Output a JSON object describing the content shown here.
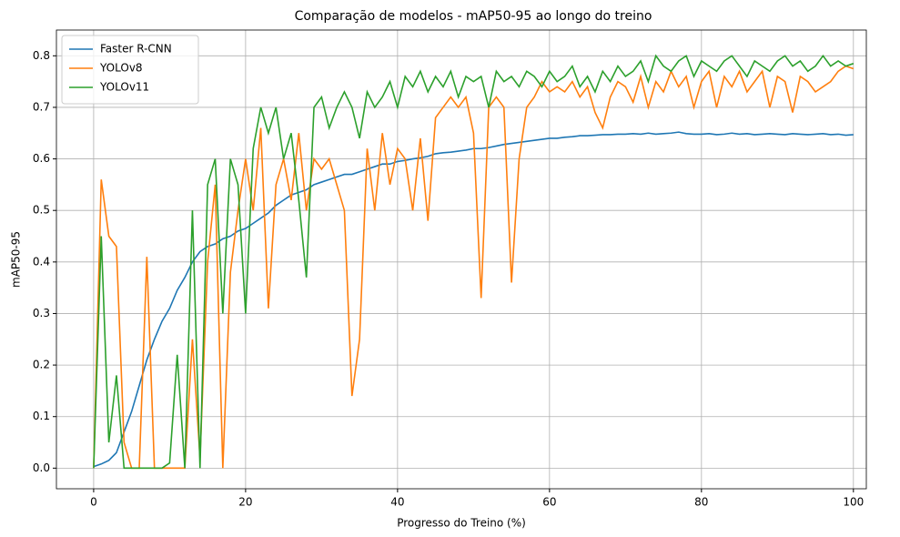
{
  "chart_data": {
    "type": "line",
    "title": "Comparação de modelos - mAP50-95 ao longo do treino",
    "x_label": "Progresso do Treino (%)",
    "y_label": "mAP50-95",
    "x": [
      0,
      1,
      2,
      3,
      4,
      5,
      6,
      7,
      8,
      9,
      10,
      11,
      12,
      13,
      14,
      15,
      16,
      17,
      18,
      19,
      20,
      21,
      22,
      23,
      24,
      25,
      26,
      27,
      28,
      29,
      30,
      31,
      32,
      33,
      34,
      35,
      36,
      37,
      38,
      39,
      40,
      41,
      42,
      43,
      44,
      45,
      46,
      47,
      48,
      49,
      50,
      51,
      52,
      53,
      54,
      55,
      56,
      57,
      58,
      59,
      60,
      61,
      62,
      63,
      64,
      65,
      66,
      67,
      68,
      69,
      70,
      71,
      72,
      73,
      74,
      75,
      76,
      77,
      78,
      79,
      80,
      81,
      82,
      83,
      84,
      85,
      86,
      87,
      88,
      89,
      90,
      91,
      92,
      93,
      94,
      95,
      96,
      97,
      98,
      99,
      100
    ],
    "series": [
      {
        "name": "Faster R-CNN",
        "color": "#1f77b4",
        "values": [
          0.003,
          0.008,
          0.015,
          0.03,
          0.07,
          0.11,
          0.16,
          0.21,
          0.25,
          0.285,
          0.31,
          0.345,
          0.37,
          0.4,
          0.42,
          0.43,
          0.435,
          0.445,
          0.45,
          0.46,
          0.465,
          0.475,
          0.485,
          0.495,
          0.51,
          0.52,
          0.53,
          0.535,
          0.54,
          0.55,
          0.555,
          0.56,
          0.565,
          0.57,
          0.57,
          0.575,
          0.58,
          0.585,
          0.59,
          0.59,
          0.595,
          0.597,
          0.6,
          0.602,
          0.605,
          0.61,
          0.612,
          0.613,
          0.615,
          0.617,
          0.62,
          0.62,
          0.622,
          0.625,
          0.628,
          0.63,
          0.632,
          0.634,
          0.636,
          0.638,
          0.64,
          0.64,
          0.642,
          0.643,
          0.645,
          0.645,
          0.646,
          0.647,
          0.647,
          0.648,
          0.648,
          0.649,
          0.648,
          0.65,
          0.648,
          0.649,
          0.65,
          0.652,
          0.649,
          0.648,
          0.648,
          0.649,
          0.647,
          0.648,
          0.65,
          0.648,
          0.649,
          0.647,
          0.648,
          0.649,
          0.648,
          0.647,
          0.649,
          0.648,
          0.647,
          0.648,
          0.649,
          0.647,
          0.648,
          0.646,
          0.647
        ]
      },
      {
        "name": "YOLOv8",
        "color": "#ff7f0e",
        "values": [
          0.0,
          0.56,
          0.45,
          0.43,
          0.05,
          0.0,
          0.0,
          0.41,
          0.0,
          0.0,
          0.0,
          0.0,
          0.0,
          0.25,
          0.02,
          0.4,
          0.55,
          0.0,
          0.38,
          0.5,
          0.6,
          0.5,
          0.66,
          0.31,
          0.55,
          0.6,
          0.52,
          0.65,
          0.5,
          0.6,
          0.58,
          0.6,
          0.55,
          0.5,
          0.14,
          0.25,
          0.62,
          0.5,
          0.65,
          0.55,
          0.62,
          0.6,
          0.5,
          0.64,
          0.48,
          0.68,
          0.7,
          0.72,
          0.7,
          0.72,
          0.65,
          0.33,
          0.7,
          0.72,
          0.7,
          0.36,
          0.6,
          0.7,
          0.72,
          0.75,
          0.73,
          0.74,
          0.73,
          0.75,
          0.72,
          0.74,
          0.69,
          0.66,
          0.72,
          0.75,
          0.74,
          0.71,
          0.76,
          0.7,
          0.75,
          0.73,
          0.77,
          0.74,
          0.76,
          0.7,
          0.75,
          0.77,
          0.7,
          0.76,
          0.74,
          0.77,
          0.73,
          0.75,
          0.77,
          0.7,
          0.76,
          0.75,
          0.69,
          0.76,
          0.75,
          0.73,
          0.74,
          0.75,
          0.77,
          0.78,
          0.775
        ]
      },
      {
        "name": "YOLOv11",
        "color": "#2ca02c",
        "values": [
          0.0,
          0.45,
          0.05,
          0.18,
          0.0,
          0.0,
          0.0,
          0.0,
          0.0,
          0.0,
          0.01,
          0.22,
          0.0,
          0.5,
          0.0,
          0.55,
          0.6,
          0.3,
          0.6,
          0.55,
          0.3,
          0.62,
          0.7,
          0.65,
          0.7,
          0.6,
          0.65,
          0.52,
          0.37,
          0.7,
          0.72,
          0.66,
          0.7,
          0.73,
          0.7,
          0.64,
          0.73,
          0.7,
          0.72,
          0.75,
          0.7,
          0.76,
          0.74,
          0.77,
          0.73,
          0.76,
          0.74,
          0.77,
          0.72,
          0.76,
          0.75,
          0.76,
          0.7,
          0.77,
          0.75,
          0.76,
          0.74,
          0.77,
          0.76,
          0.74,
          0.77,
          0.75,
          0.76,
          0.78,
          0.74,
          0.76,
          0.73,
          0.77,
          0.75,
          0.78,
          0.76,
          0.77,
          0.79,
          0.75,
          0.8,
          0.78,
          0.77,
          0.79,
          0.8,
          0.76,
          0.79,
          0.78,
          0.77,
          0.79,
          0.8,
          0.78,
          0.76,
          0.79,
          0.78,
          0.77,
          0.79,
          0.8,
          0.78,
          0.79,
          0.77,
          0.78,
          0.8,
          0.78,
          0.79,
          0.78,
          0.785
        ]
      }
    ],
    "xlim": [
      -4.9,
      101.7
    ],
    "ylim": [
      -0.04,
      0.85
    ],
    "xticks": [
      0,
      20,
      40,
      60,
      80,
      100
    ],
    "yticks": [
      {
        "value": 0,
        "label": "0.0"
      },
      0.1,
      0.2,
      0.3,
      0.4,
      0.5,
      0.6,
      0.7,
      0.8
    ],
    "grid": true,
    "legend": "upper-left"
  }
}
